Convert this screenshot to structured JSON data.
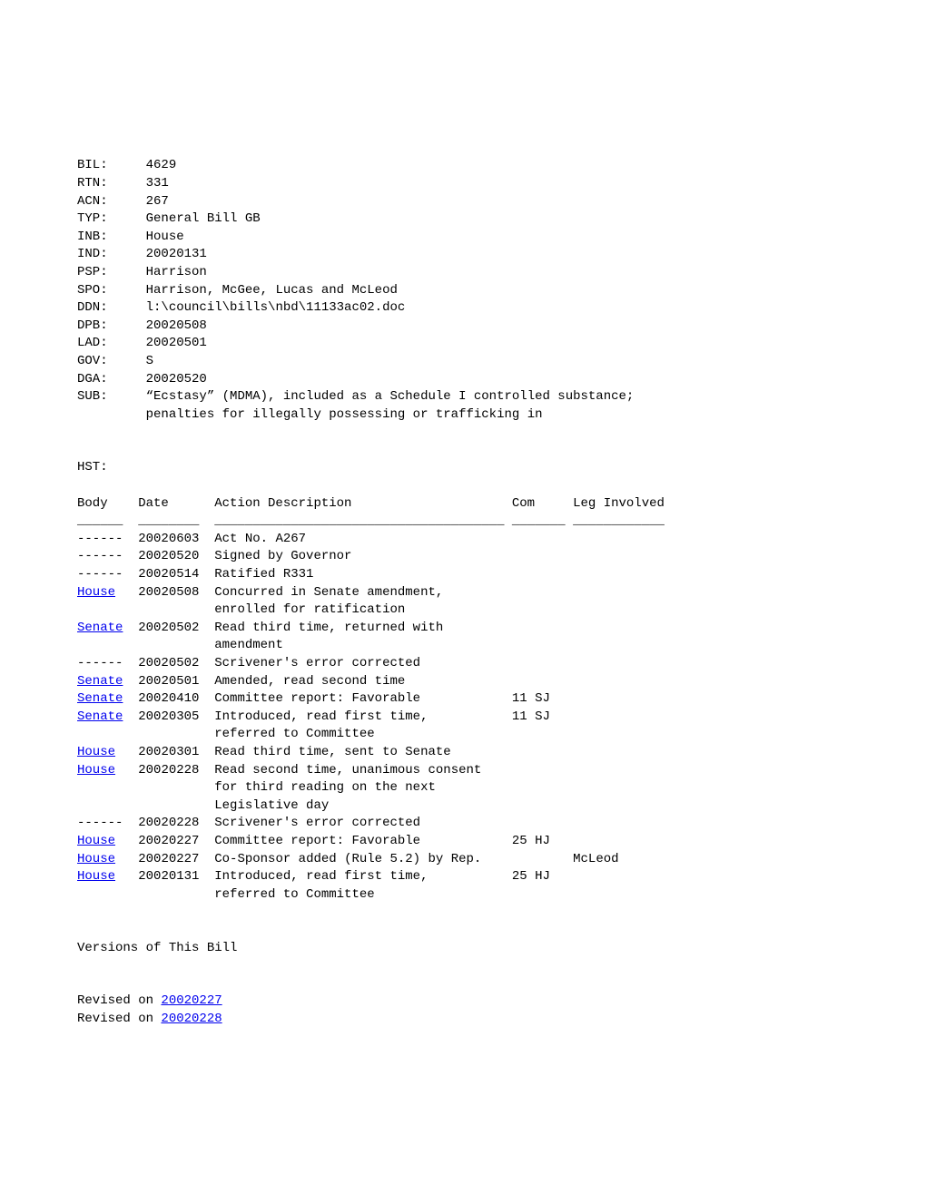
{
  "header": {
    "fields": [
      {
        "label": "BIL:",
        "value": "4629"
      },
      {
        "label": "RTN:",
        "value": "331"
      },
      {
        "label": "ACN:",
        "value": "267"
      },
      {
        "label": "TYP:",
        "value": "General Bill GB"
      },
      {
        "label": "INB:",
        "value": "House"
      },
      {
        "label": "IND:",
        "value": "20020131"
      },
      {
        "label": "PSP:",
        "value": "Harrison"
      },
      {
        "label": "SPO:",
        "value": "Harrison, McGee, Lucas and McLeod"
      },
      {
        "label": "DDN:",
        "value": "l:\\council\\bills\\nbd\\11133ac02.doc"
      },
      {
        "label": "DPB:",
        "value": "20020508"
      },
      {
        "label": "LAD:",
        "value": "20020501"
      },
      {
        "label": "GOV:",
        "value": "S"
      },
      {
        "label": "DGA:",
        "value": "20020520"
      },
      {
        "label": "SUB:",
        "value": "“Ecstasy” (MDMA), included as a Schedule I controlled substance;"
      },
      {
        "label": "",
        "value": "penalties for illegally possessing or trafficking in"
      }
    ]
  },
  "hst_label": "HST:",
  "table": {
    "columns": {
      "body": "Body",
      "date": "Date",
      "action": "Action Description",
      "com": "Com",
      "leg": "Leg Involved"
    },
    "separators": {
      "body": "______",
      "date": "________",
      "action": "______________________________________",
      "com": "_______",
      "leg": "____________"
    },
    "rows": [
      {
        "body": "------",
        "body_link": false,
        "date": "20020603",
        "action": "Act No. A267",
        "com": "",
        "leg": ""
      },
      {
        "body": "------",
        "body_link": false,
        "date": "20020520",
        "action": "Signed by Governor",
        "com": "",
        "leg": ""
      },
      {
        "body": "------",
        "body_link": false,
        "date": "20020514",
        "action": "Ratified R331",
        "com": "",
        "leg": ""
      },
      {
        "body": "House",
        "body_link": true,
        "date": "20020508",
        "action": "Concurred in Senate amendment,",
        "com": "",
        "leg": ""
      },
      {
        "body": "",
        "body_link": false,
        "date": "",
        "action": "enrolled for ratification",
        "com": "",
        "leg": ""
      },
      {
        "body": "Senate",
        "body_link": true,
        "date": "20020502",
        "action": "Read third time, returned with",
        "com": "",
        "leg": ""
      },
      {
        "body": "",
        "body_link": false,
        "date": "",
        "action": "amendment",
        "com": "",
        "leg": ""
      },
      {
        "body": "------",
        "body_link": false,
        "date": "20020502",
        "action": "Scrivener's error corrected",
        "com": "",
        "leg": ""
      },
      {
        "body": "Senate",
        "body_link": true,
        "date": "20020501",
        "action": "Amended, read second time",
        "com": "",
        "leg": ""
      },
      {
        "body": "Senate",
        "body_link": true,
        "date": "20020410",
        "action": "Committee report: Favorable",
        "com": "11 SJ",
        "leg": ""
      },
      {
        "body": "Senate",
        "body_link": true,
        "date": "20020305",
        "action": "Introduced, read first time,",
        "com": "11 SJ",
        "leg": ""
      },
      {
        "body": "",
        "body_link": false,
        "date": "",
        "action": "referred to Committee",
        "com": "",
        "leg": ""
      },
      {
        "body": "House",
        "body_link": true,
        "date": "20020301",
        "action": "Read third time, sent to Senate",
        "com": "",
        "leg": ""
      },
      {
        "body": "House",
        "body_link": true,
        "date": "20020228",
        "action": "Read second time, unanimous consent",
        "com": "",
        "leg": ""
      },
      {
        "body": "",
        "body_link": false,
        "date": "",
        "action": "for third reading on the next",
        "com": "",
        "leg": ""
      },
      {
        "body": "",
        "body_link": false,
        "date": "",
        "action": "Legislative day",
        "com": "",
        "leg": ""
      },
      {
        "body": "------",
        "body_link": false,
        "date": "20020228",
        "action": "Scrivener's error corrected",
        "com": "",
        "leg": ""
      },
      {
        "body": "House",
        "body_link": true,
        "date": "20020227",
        "action": "Committee report: Favorable",
        "com": "25 HJ",
        "leg": ""
      },
      {
        "body": "House",
        "body_link": true,
        "date": "20020227",
        "action": "Co-Sponsor added (Rule 5.2) by Rep.",
        "com": "",
        "leg": "McLeod"
      },
      {
        "body": "House",
        "body_link": true,
        "date": "20020131",
        "action": "Introduced, read first time,",
        "com": "25 HJ",
        "leg": ""
      },
      {
        "body": "",
        "body_link": false,
        "date": "",
        "action": "referred to Committee",
        "com": "",
        "leg": ""
      }
    ]
  },
  "versions": {
    "title": "Versions of This Bill",
    "prefix": "Revised on ",
    "items": [
      "20020227",
      "20020228"
    ]
  },
  "layout": {
    "label_width": 9,
    "body_width": 8,
    "date_width": 10,
    "action_width": 39,
    "com_width": 8
  }
}
